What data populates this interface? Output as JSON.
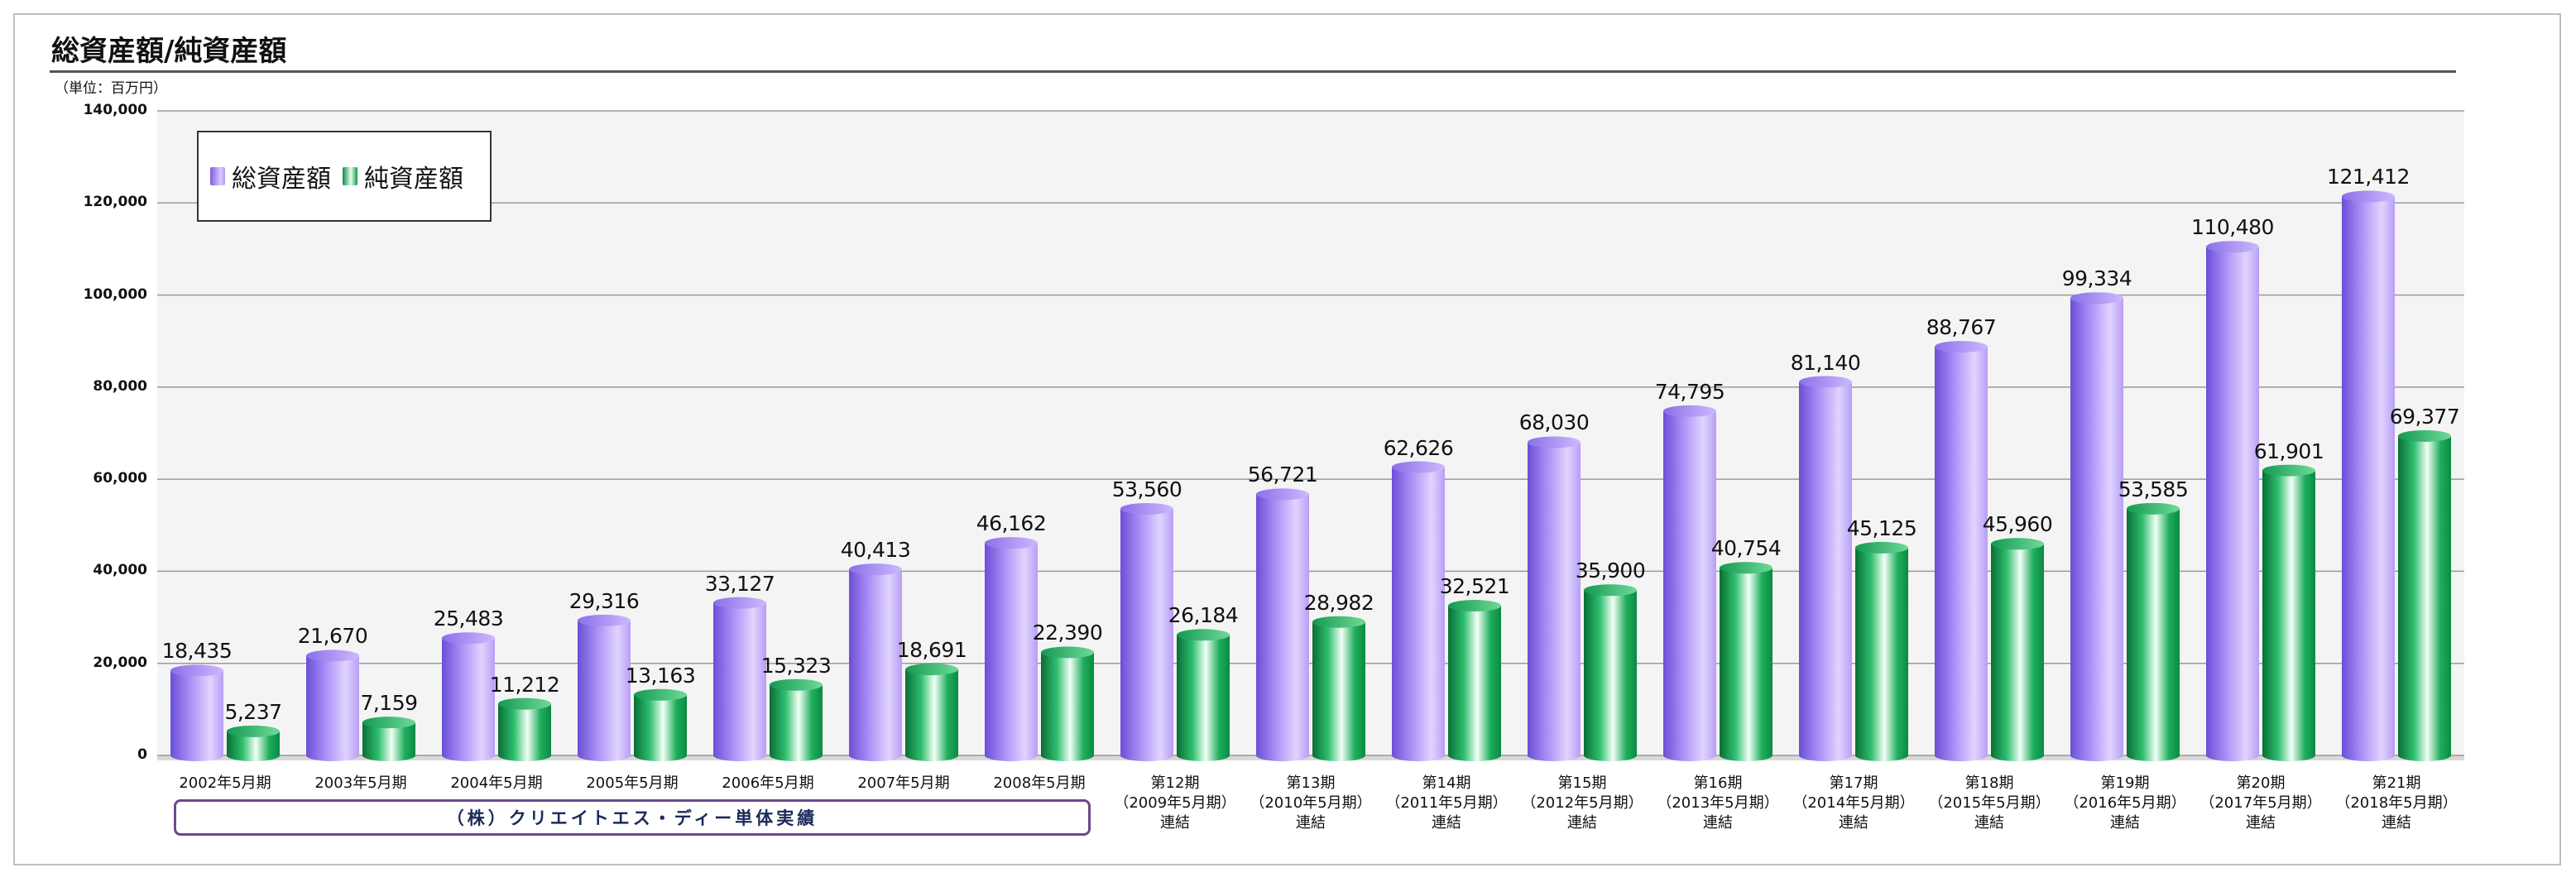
{
  "page": {
    "title": "総資産額/純資産額",
    "unit": "（単位：百万円）",
    "company_note": "（株）クリエイトエス・ディー単体実績"
  },
  "colors": {
    "total_assets": "#9f7ff0",
    "net_assets": "#0f9a4c",
    "plot_bg": "#f4f4f4",
    "grid": "#9a9a9a"
  },
  "chart_data": {
    "type": "bar",
    "title": "総資産額/純資産額",
    "ylabel": "（単位：百万円）",
    "ylim": [
      0,
      140000
    ],
    "yticks": [
      "140,000",
      "120,000",
      "100,000",
      "80,000",
      "60,000",
      "40,000",
      "20,000",
      "0"
    ],
    "ytick_values": [
      140000,
      120000,
      100000,
      80000,
      60000,
      40000,
      20000,
      0
    ],
    "legend_position": "top-left",
    "grid": true,
    "categories": [
      "2002年5月期",
      "2003年5月期",
      "2004年5月期",
      "2005年5月期",
      "2006年5月期",
      "2007年5月期",
      "2008年5月期",
      "第12期\n（2009年5月期）\n連結",
      "第13期\n（2010年5月期）\n連結",
      "第14期\n（2011年5月期）\n連結",
      "第15期\n（2012年5月期）\n連結",
      "第16期\n（2013年5月期）\n連結",
      "第17期\n（2014年5月期）\n連結",
      "第18期\n（2015年5月期）\n連結",
      "第19期\n（2016年5月期）\n連結",
      "第20期\n（2017年5月期）\n連結",
      "第21期\n（2018年5月期）\n連結"
    ],
    "series": [
      {
        "name": "総資産額",
        "values": [
          18435,
          21670,
          25483,
          29316,
          33127,
          40413,
          46162,
          53560,
          56721,
          62626,
          68030,
          74795,
          81140,
          88767,
          99334,
          110480,
          121412
        ],
        "labels": [
          "18,435",
          "21,670",
          "25,483",
          "29,316",
          "33,127",
          "40,413",
          "46,162",
          "53,560",
          "56,721",
          "62,626",
          "68,030",
          "74,795",
          "81,140",
          "88,767",
          "99,334",
          "110,480",
          "121,412"
        ]
      },
      {
        "name": "純資産額",
        "values": [
          5237,
          7159,
          11212,
          13163,
          15323,
          18691,
          22390,
          26184,
          28982,
          32521,
          35900,
          40754,
          45125,
          45960,
          53585,
          61901,
          69377
        ],
        "labels": [
          "5,237",
          "7,159",
          "11,212",
          "13,163",
          "15,323",
          "18,691",
          "22,390",
          "26,184",
          "28,982",
          "32,521",
          "35,900",
          "40,754",
          "45,125",
          "45,960",
          "53,585",
          "61,901",
          "69,377"
        ]
      }
    ]
  }
}
